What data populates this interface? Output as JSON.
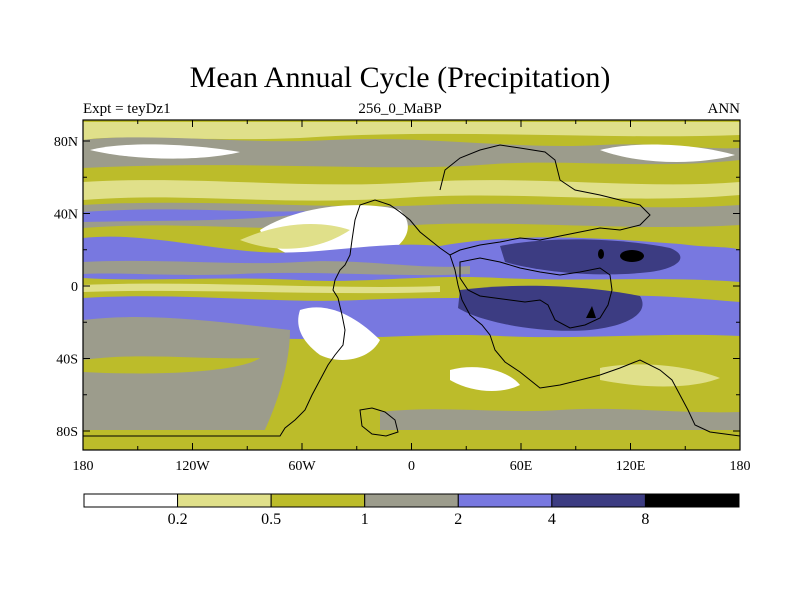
{
  "title": "Mean Annual Cycle (Precipitation)",
  "subtitle_left": "Expt = teyDz1",
  "subtitle_center": "256_0_MaBP",
  "subtitle_right": "ANN",
  "lat_labels": [
    "80N",
    "40N",
    "0",
    "40S",
    "80S"
  ],
  "lon_labels": [
    "180",
    "120W",
    "60W",
    "0",
    "60E",
    "120E",
    "180"
  ],
  "colorbar": {
    "levels": [
      "0.2",
      "0.5",
      "1",
      "2",
      "4",
      "8"
    ],
    "colors": [
      "#ffffff",
      "#e0e08a",
      "#bcbc2a",
      "#9c9c8c",
      "#7878e0",
      "#3c3c82",
      "#000000"
    ]
  }
}
